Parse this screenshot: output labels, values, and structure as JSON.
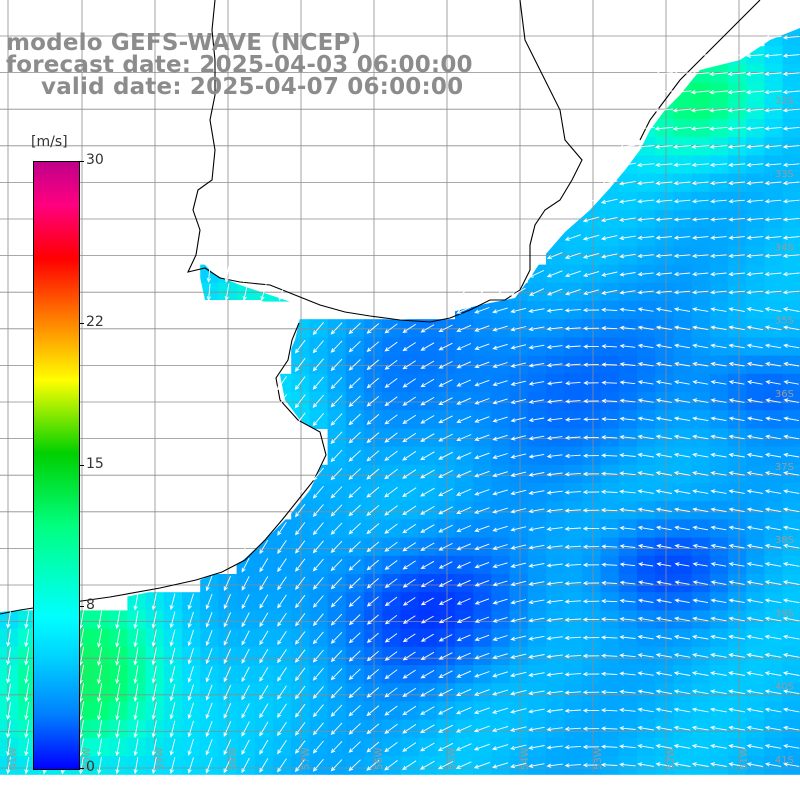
{
  "titles": {
    "line1": "modelo GEFS-WAVE (NCEP)",
    "line2": "forecast date: 2025-04-03 06:00:00",
    "line3": "valid date: 2025-04-07 06:00:00"
  },
  "colorbar": {
    "unit": "[m/s]",
    "min": 0,
    "max": 30,
    "ticks": [
      "30",
      "22",
      "15",
      "8",
      "0"
    ],
    "tick_values": [
      30,
      22,
      15,
      8,
      0
    ]
  },
  "map": {
    "latitude_labels": [
      "32S",
      "33S",
      "34S",
      "35S",
      "36S",
      "37S",
      "38S",
      "39S",
      "40S",
      "41S"
    ],
    "longitude_labels": [
      "61W",
      "60W",
      "59W",
      "58W",
      "57W",
      "56W",
      "55W",
      "54W",
      "53W",
      "52W",
      "51W"
    ]
  },
  "colors": {
    "land": "#ffffff",
    "coastline": "#000000",
    "grid": "#8c8c8c",
    "arrows": "#ffffff",
    "title_text": "#8c8c8c"
  }
}
